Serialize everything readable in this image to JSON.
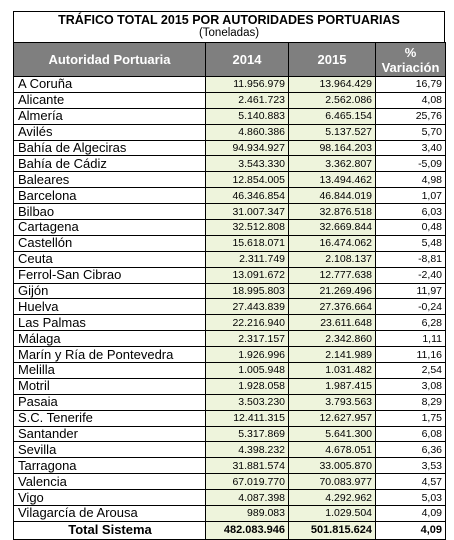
{
  "title": "TRÁFICO TOTAL 2015 POR AUTORIDADES PORTUARIAS",
  "subtitle": "(Toneladas)",
  "headers": {
    "name": "Autoridad Portuaria",
    "y2014": "2014",
    "y2015": "2015",
    "var1": "%",
    "var2": "Variación"
  },
  "rows": [
    {
      "name": "A Coruña",
      "y2014": "11.956.979",
      "y2015": "13.964.429",
      "var": "16,79"
    },
    {
      "name": "Alicante",
      "y2014": "2.461.723",
      "y2015": "2.562.086",
      "var": "4,08"
    },
    {
      "name": "Almería",
      "y2014": "5.140.883",
      "y2015": "6.465.154",
      "var": "25,76"
    },
    {
      "name": "Avilés",
      "y2014": "4.860.386",
      "y2015": "5.137.527",
      "var": "5,70"
    },
    {
      "name": "Bahía de Algeciras",
      "y2014": "94.934.927",
      "y2015": "98.164.203",
      "var": "3,40"
    },
    {
      "name": "Bahía de Cádiz",
      "y2014": "3.543.330",
      "y2015": "3.362.807",
      "var": "-5,09"
    },
    {
      "name": "Baleares",
      "y2014": "12.854.005",
      "y2015": "13.494.462",
      "var": "4,98"
    },
    {
      "name": "Barcelona",
      "y2014": "46.346.854",
      "y2015": "46.844.019",
      "var": "1,07"
    },
    {
      "name": "Bilbao",
      "y2014": "31.007.347",
      "y2015": "32.876.518",
      "var": "6,03"
    },
    {
      "name": "Cartagena",
      "y2014": "32.512.808",
      "y2015": "32.669.844",
      "var": "0,48"
    },
    {
      "name": "Castellón",
      "y2014": "15.618.071",
      "y2015": "16.474.062",
      "var": "5,48"
    },
    {
      "name": "Ceuta",
      "y2014": "2.311.749",
      "y2015": "2.108.137",
      "var": "-8,81"
    },
    {
      "name": "Ferrol-San Cibrao",
      "y2014": "13.091.672",
      "y2015": "12.777.638",
      "var": "-2,40"
    },
    {
      "name": "Gijón",
      "y2014": "18.995.803",
      "y2015": "21.269.496",
      "var": "11,97"
    },
    {
      "name": "Huelva",
      "y2014": "27.443.839",
      "y2015": "27.376.664",
      "var": "-0,24"
    },
    {
      "name": "Las Palmas",
      "y2014": "22.216.940",
      "y2015": "23.611.648",
      "var": "6,28"
    },
    {
      "name": "Málaga",
      "y2014": "2.317.157",
      "y2015": "2.342.860",
      "var": "1,11"
    },
    {
      "name": "Marín y Ría de Pontevedra",
      "y2014": "1.926.996",
      "y2015": "2.141.989",
      "var": "11,16"
    },
    {
      "name": "Melilla",
      "y2014": "1.005.948",
      "y2015": "1.031.482",
      "var": "2,54"
    },
    {
      "name": "Motril",
      "y2014": "1.928.058",
      "y2015": "1.987.415",
      "var": "3,08"
    },
    {
      "name": "Pasaia",
      "y2014": "3.503.230",
      "y2015": "3.793.563",
      "var": "8,29"
    },
    {
      "name": "S.C. Tenerife",
      "y2014": "12.411.315",
      "y2015": "12.627.957",
      "var": "1,75"
    },
    {
      "name": "Santander",
      "y2014": "5.317.869",
      "y2015": "5.641.300",
      "var": "6,08"
    },
    {
      "name": "Sevilla",
      "y2014": "4.398.232",
      "y2015": "4.678.051",
      "var": "6,36"
    },
    {
      "name": "Tarragona",
      "y2014": "31.881.574",
      "y2015": "33.005.870",
      "var": "3,53"
    },
    {
      "name": "Valencia",
      "y2014": "67.019.770",
      "y2015": "70.083.977",
      "var": "4,57"
    },
    {
      "name": "Vigo",
      "y2014": "4.087.398",
      "y2015": "4.292.962",
      "var": "5,03"
    },
    {
      "name": "Vilagarcía de Arousa",
      "y2014": "989.083",
      "y2015": "1.029.504",
      "var": "4,09"
    }
  ],
  "total": {
    "name": "Total Sistema",
    "y2014": "482.083.946",
    "y2015": "501.815.624",
    "var": "4,09"
  }
}
